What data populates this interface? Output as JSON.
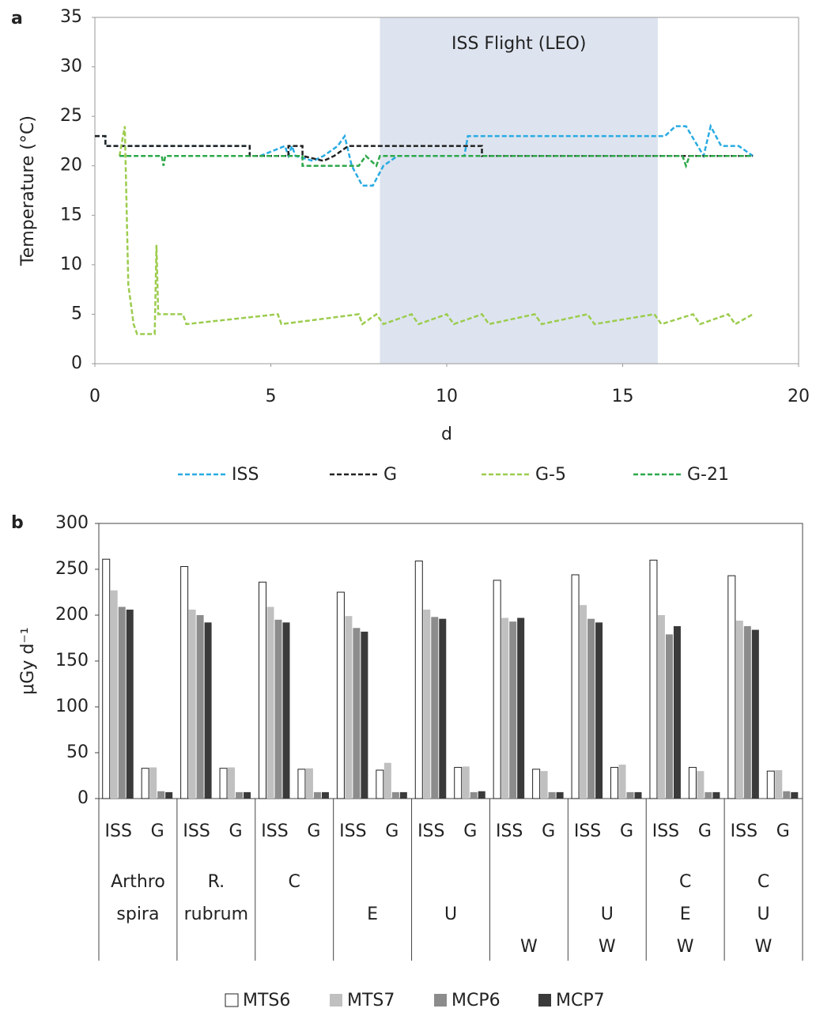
{
  "chart_data": [
    {
      "type": "line",
      "panel_label": "a",
      "xlabel": "d",
      "ylabel": "Temperature (°C)",
      "annotation": "ISS Flight (LEO)",
      "shaded_region": [
        8.1,
        16
      ],
      "shade_color": "#dde4ef",
      "xlim": [
        0,
        20
      ],
      "xticks": [
        0,
        5,
        10,
        15,
        20
      ],
      "ylim": [
        0,
        35
      ],
      "yticks": [
        0,
        5,
        10,
        15,
        20,
        25,
        30,
        35
      ],
      "series": [
        {
          "name": "ISS",
          "color": "#29abe2",
          "x": [
            0,
            0.3,
            0.3,
            4.4,
            4.4,
            4.7,
            4.7,
            5.4,
            5.5,
            5.6,
            5.7,
            6.2,
            6.5,
            6.9,
            7.1,
            7.3,
            7.6,
            7.9,
            8.2,
            8.6,
            9.5,
            10.5,
            10.6,
            16.2,
            16.5,
            16.8,
            17.3,
            17.5,
            17.8,
            18.3,
            18.7
          ],
          "values": [
            23,
            23,
            22,
            22,
            21,
            21,
            21,
            22,
            21,
            22,
            21,
            20.5,
            21,
            22,
            23,
            20,
            18,
            18,
            20,
            21,
            21,
            21,
            23,
            23,
            24,
            24,
            21,
            24,
            22,
            22,
            21
          ]
        },
        {
          "name": "G",
          "color": "#222222",
          "x": [
            0,
            0.3,
            0.3,
            4.4,
            4.4,
            5.5,
            5.5,
            5.9,
            5.9,
            6.5,
            6.8,
            7.2,
            11,
            11,
            18.7
          ],
          "values": [
            23,
            23,
            22,
            22,
            21,
            21,
            22,
            22,
            21,
            20.5,
            21,
            22,
            22,
            21,
            21
          ]
        },
        {
          "name": "G-5",
          "color": "#9ccc4e",
          "x": [
            0.7,
            0.85,
            0.95,
            1.1,
            1.2,
            1.7,
            1.75,
            1.8,
            2.5,
            2.6,
            5.2,
            5.3,
            7.5,
            7.6,
            8.0,
            8.2,
            9.0,
            9.2,
            10.0,
            10.2,
            11.0,
            11.2,
            12.5,
            12.7,
            14.0,
            14.2,
            15.9,
            16.1,
            17.0,
            17.2,
            18.0,
            18.2,
            18.7
          ],
          "values": [
            21,
            24,
            8,
            4,
            3,
            3,
            12,
            5,
            5,
            4,
            5,
            4,
            5,
            4,
            5,
            4,
            5,
            4,
            5,
            4,
            5,
            4,
            5,
            4,
            5,
            4,
            5,
            4,
            5,
            4,
            5,
            4,
            5
          ]
        },
        {
          "name": "G-21",
          "color": "#2ea84a",
          "x": [
            0.7,
            1.9,
            1.95,
            2.0,
            5.9,
            5.9,
            7.5,
            7.7,
            8.0,
            8.1,
            16.7,
            16.8,
            16.9,
            18.7
          ],
          "values": [
            21,
            21,
            20,
            21,
            21,
            20,
            20,
            21,
            20,
            21,
            21,
            20,
            21,
            21
          ]
        }
      ]
    },
    {
      "type": "bar",
      "panel_label": "b",
      "ylabel": "μGy d⁻¹",
      "ylim": [
        0,
        300
      ],
      "yticks": [
        0,
        50,
        100,
        150,
        200,
        250,
        300
      ],
      "categories": [
        "ISS",
        "G",
        "ISS",
        "G",
        "ISS",
        "G",
        "ISS",
        "G",
        "ISS",
        "G",
        "ISS",
        "G",
        "ISS",
        "G",
        "ISS",
        "G",
        "ISS",
        "G"
      ],
      "group_labels": [
        [
          "Arthro",
          "spira",
          null
        ],
        [
          "R.",
          "rubrum",
          null
        ],
        [
          "C",
          null,
          null
        ],
        [
          null,
          "E",
          null
        ],
        [
          null,
          "U",
          null
        ],
        [
          null,
          null,
          "W"
        ],
        [
          null,
          "U",
          "W"
        ],
        [
          "C",
          "E",
          "W"
        ],
        [
          "C",
          "U",
          "W"
        ]
      ],
      "series": [
        {
          "name": "MTS6",
          "color": "#ffffff",
          "values": [
            261,
            33,
            253,
            33,
            236,
            32,
            225,
            31,
            259,
            34,
            238,
            32,
            244,
            34,
            260,
            34,
            243,
            30
          ]
        },
        {
          "name": "MTS7",
          "color": "#c0c0c0",
          "values": [
            227,
            34,
            206,
            34,
            209,
            33,
            199,
            39,
            206,
            35,
            197,
            30,
            211,
            37,
            200,
            30,
            194,
            31
          ]
        },
        {
          "name": "MCP6",
          "color": "#8c8c8c",
          "values": [
            209,
            8,
            200,
            7,
            195,
            7,
            186,
            7,
            198,
            7,
            193,
            7,
            196,
            7,
            179,
            7,
            188,
            8
          ]
        },
        {
          "name": "MCP7",
          "color": "#3a3a3a",
          "values": [
            206,
            7,
            192,
            7,
            192,
            7,
            182,
            7,
            196,
            8,
            197,
            7,
            192,
            7,
            188,
            7,
            184,
            7
          ]
        }
      ]
    }
  ]
}
